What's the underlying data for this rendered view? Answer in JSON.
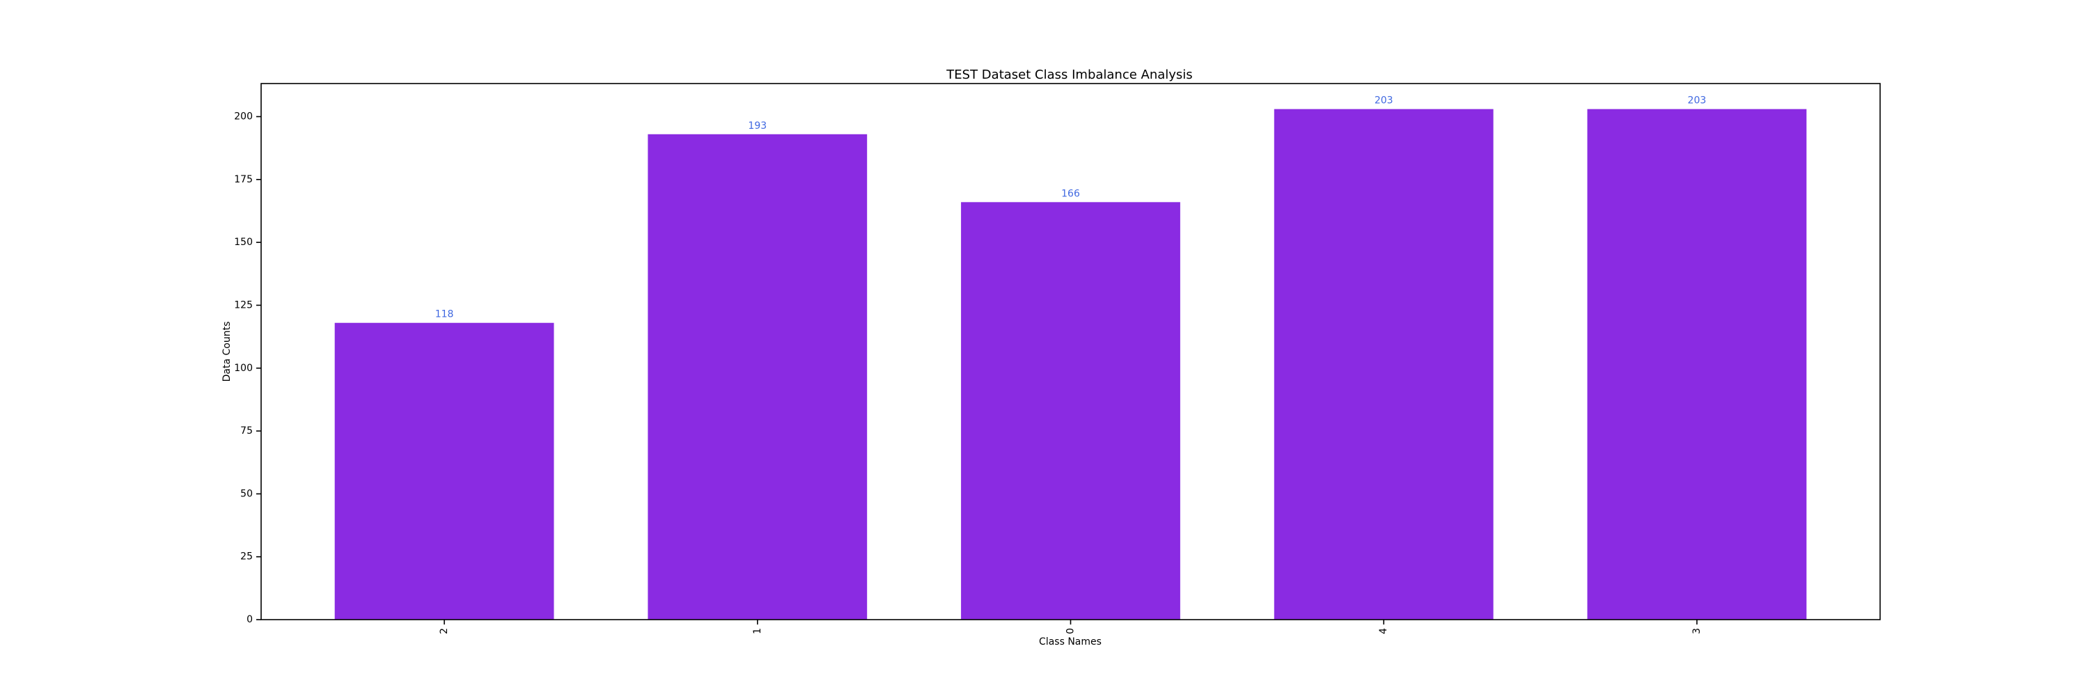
{
  "chart_data": {
    "type": "bar",
    "title": "TEST Dataset Class Imbalance Analysis",
    "xlabel": "Class Names",
    "ylabel": "Data Counts",
    "categories": [
      "2",
      "1",
      "0",
      "4",
      "3"
    ],
    "values": [
      118,
      193,
      166,
      203,
      203
    ],
    "data_labels": [
      "118",
      "193",
      "166",
      "203",
      "203"
    ],
    "ylim": [
      0,
      213.15
    ],
    "yticks": [
      0,
      25,
      50,
      75,
      100,
      125,
      150,
      175,
      200
    ],
    "ytick_labels": [
      "0",
      "25",
      "50",
      "75",
      "100",
      "125",
      "150",
      "175",
      "200"
    ],
    "xtick_rotation": "vertical",
    "grid": false,
    "legend": "none",
    "colors": {
      "bar": "#8a2be2",
      "data_label": "#4169e1",
      "axis": "#000000",
      "text": "#000000"
    }
  }
}
